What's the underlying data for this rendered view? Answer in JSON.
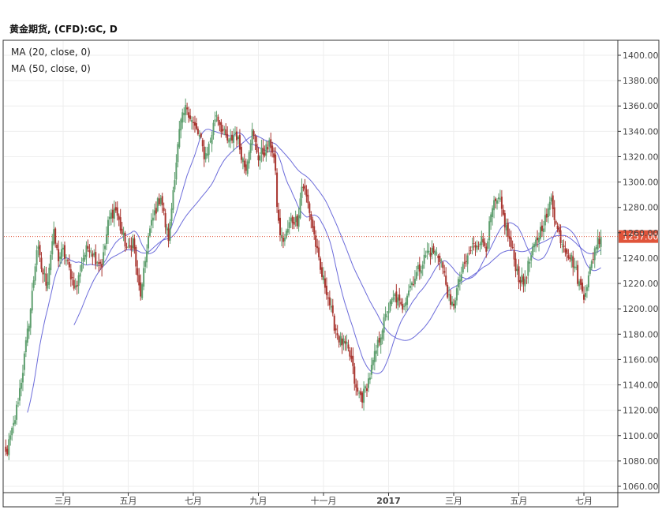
{
  "header": {
    "title": "黄金期货, (CFD):GC, D"
  },
  "legend": [
    {
      "label": "MA (20, close, 0)"
    },
    {
      "label": "MA (50, close, 0)"
    }
  ],
  "colors": {
    "up": "#5f9f6f",
    "down": "#a8352f",
    "ma20": "#5b5bd6",
    "ma50": "#5b5bd6",
    "last_line": "#e0543a",
    "last_label_bg": "#e0543a",
    "grid": "#eeeeee",
    "axis": "#333333"
  },
  "chart_data": {
    "type": "candlestick",
    "title": "黄金期货, (CFD):GC, D",
    "xlabel": "",
    "ylabel": "",
    "ylim": [
      1060,
      1400
    ],
    "y_ticks": [
      1400,
      1380,
      1360,
      1340,
      1320,
      1300,
      1280,
      1260,
      1240,
      1220,
      1200,
      1180,
      1160,
      1140,
      1120,
      1100,
      1080,
      1060
    ],
    "y_tick_labels": [
      "1400.00",
      "1380.00",
      "1360.00",
      "1340.00",
      "1320.00",
      "1300.00",
      "1280.00",
      "1260.00",
      "1240.00",
      "1220.00",
      "1200.00",
      "1180.00",
      "1160.00",
      "1140.00",
      "1120.00",
      "1100.00",
      "1080.00",
      "1060.00"
    ],
    "x_ticks": [
      {
        "label": "三月",
        "month_index": 2
      },
      {
        "label": "五月",
        "month_index": 4
      },
      {
        "label": "七月",
        "month_index": 6
      },
      {
        "label": "九月",
        "month_index": 8
      },
      {
        "label": "十一月",
        "month_index": 10
      },
      {
        "label": "2017",
        "month_index": 12,
        "bold": true
      },
      {
        "label": "三月",
        "month_index": 14
      },
      {
        "label": "五月",
        "month_index": 16
      },
      {
        "label": "七月",
        "month_index": 18
      }
    ],
    "last_value": 1257.0,
    "last_label": "1257.00",
    "grid": true,
    "series": [
      {
        "name": "MA (20, close, 0)",
        "kind": "ma20"
      },
      {
        "name": "MA (50, close, 0)",
        "kind": "ma50"
      }
    ],
    "close_anchors": [
      [
        0,
        1095
      ],
      [
        0.25,
        1085
      ],
      [
        0.5,
        1110
      ],
      [
        0.75,
        1150
      ],
      [
        1.0,
        1200
      ],
      [
        1.2,
        1250
      ],
      [
        1.35,
        1230
      ],
      [
        1.5,
        1220
      ],
      [
        1.7,
        1260
      ],
      [
        1.85,
        1240
      ],
      [
        2.0,
        1245
      ],
      [
        2.2,
        1230
      ],
      [
        2.4,
        1215
      ],
      [
        2.6,
        1240
      ],
      [
        2.8,
        1250
      ],
      [
        3.0,
        1240
      ],
      [
        3.2,
        1235
      ],
      [
        3.4,
        1270
      ],
      [
        3.6,
        1280
      ],
      [
        3.8,
        1260
      ],
      [
        4.0,
        1245
      ],
      [
        4.15,
        1255
      ],
      [
        4.3,
        1220
      ],
      [
        4.4,
        1210
      ],
      [
        4.6,
        1255
      ],
      [
        4.8,
        1275
      ],
      [
        5.0,
        1290
      ],
      [
        5.15,
        1265
      ],
      [
        5.25,
        1255
      ],
      [
        5.4,
        1300
      ],
      [
        5.6,
        1345
      ],
      [
        5.8,
        1360
      ],
      [
        6.0,
        1345
      ],
      [
        6.2,
        1335
      ],
      [
        6.35,
        1320
      ],
      [
        6.5,
        1330
      ],
      [
        6.7,
        1355
      ],
      [
        6.9,
        1340
      ],
      [
        7.1,
        1330
      ],
      [
        7.3,
        1340
      ],
      [
        7.5,
        1320
      ],
      [
        7.6,
        1310
      ],
      [
        7.8,
        1340
      ],
      [
        8.0,
        1320
      ],
      [
        8.2,
        1325
      ],
      [
        8.4,
        1330
      ],
      [
        8.5,
        1315
      ],
      [
        8.6,
        1270
      ],
      [
        8.7,
        1255
      ],
      [
        8.8,
        1255
      ],
      [
        9.0,
        1270
      ],
      [
        9.2,
        1270
      ],
      [
        9.35,
        1300
      ],
      [
        9.55,
        1280
      ],
      [
        9.7,
        1260
      ],
      [
        9.9,
        1230
      ],
      [
        10.1,
        1215
      ],
      [
        10.3,
        1190
      ],
      [
        10.5,
        1175
      ],
      [
        10.7,
        1170
      ],
      [
        10.85,
        1160
      ],
      [
        11.0,
        1135
      ],
      [
        11.2,
        1130
      ],
      [
        11.4,
        1145
      ],
      [
        11.6,
        1165
      ],
      [
        11.8,
        1185
      ],
      [
        12.0,
        1200
      ],
      [
        12.2,
        1210
      ],
      [
        12.4,
        1200
      ],
      [
        12.6,
        1215
      ],
      [
        12.8,
        1225
      ],
      [
        13.0,
        1235
      ],
      [
        13.2,
        1245
      ],
      [
        13.4,
        1245
      ],
      [
        13.6,
        1240
      ],
      [
        13.8,
        1215
      ],
      [
        13.9,
        1200
      ],
      [
        14.0,
        1205
      ],
      [
        14.2,
        1225
      ],
      [
        14.5,
        1245
      ],
      [
        14.8,
        1255
      ],
      [
        15.0,
        1250
      ],
      [
        15.2,
        1280
      ],
      [
        15.4,
        1285
      ],
      [
        15.6,
        1265
      ],
      [
        15.8,
        1245
      ],
      [
        16.0,
        1225
      ],
      [
        16.15,
        1220
      ],
      [
        16.3,
        1235
      ],
      [
        16.5,
        1250
      ],
      [
        16.7,
        1265
      ],
      [
        16.9,
        1275
      ],
      [
        17.0,
        1290
      ],
      [
        17.15,
        1265
      ],
      [
        17.3,
        1255
      ],
      [
        17.5,
        1245
      ],
      [
        17.7,
        1235
      ],
      [
        17.85,
        1220
      ],
      [
        18.0,
        1212
      ],
      [
        18.15,
        1225
      ],
      [
        18.35,
        1250
      ],
      [
        18.5,
        1257
      ]
    ]
  }
}
